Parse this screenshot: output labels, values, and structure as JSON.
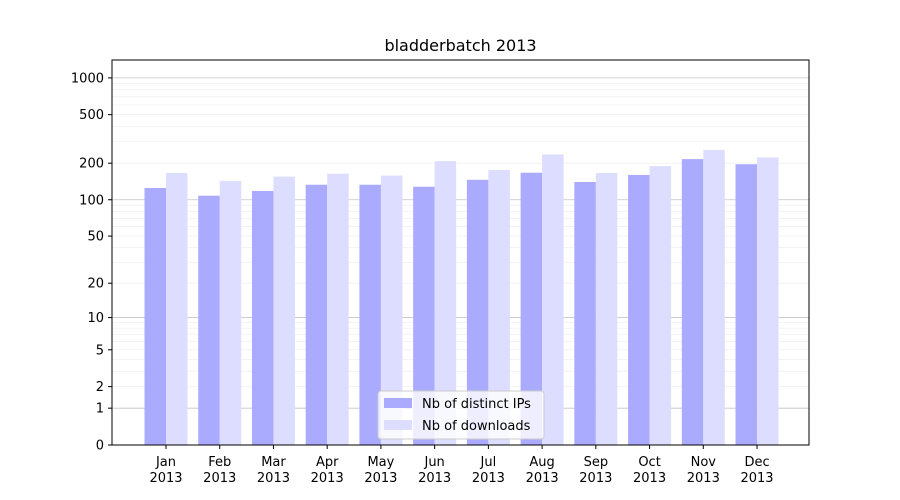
{
  "chart_data": {
    "type": "bar",
    "title": "bladderbatch 2013",
    "xlabel": "",
    "ylabel": "",
    "yscale": "log1p",
    "ylim": [
      0,
      1400
    ],
    "yticks": [
      0,
      1,
      2,
      5,
      10,
      20,
      50,
      100,
      200,
      500,
      1000
    ],
    "grid": true,
    "legend_position": "lower center",
    "categories": [
      "Jan\n2013",
      "Feb\n2013",
      "Mar\n2013",
      "Apr\n2013",
      "May\n2013",
      "Jun\n2013",
      "Jul\n2013",
      "Aug\n2013",
      "Sep\n2013",
      "Oct\n2013",
      "Nov\n2013",
      "Dec\n2013"
    ],
    "series": [
      {
        "name": "Nb of distinct IPs",
        "color": "#aaaaff",
        "values": [
          125,
          108,
          118,
          133,
          133,
          128,
          146,
          167,
          140,
          160,
          216,
          196
        ]
      },
      {
        "name": "Nb of downloads",
        "color": "#ddddff",
        "values": [
          166,
          143,
          155,
          164,
          158,
          208,
          176,
          236,
          166,
          189,
          257,
          223
        ]
      }
    ]
  }
}
